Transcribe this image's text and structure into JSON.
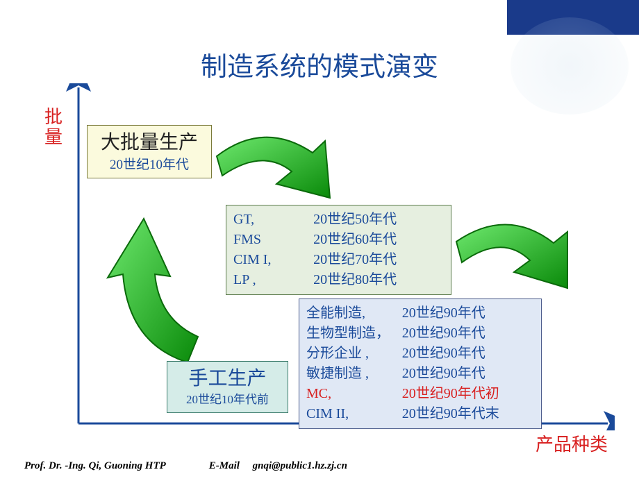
{
  "title": "制造系统的模式演变",
  "axes": {
    "y_label": "批量",
    "x_label": "产品种类",
    "axis_color": "#1a4a9a",
    "axis_width": 3
  },
  "box1": {
    "line1": "大批量生产",
    "line2": "20世纪10年代",
    "bg": "#fbfadd",
    "border": "#7a7a3a"
  },
  "box4": {
    "line1": "手工生产",
    "line2": "20世纪10年代前",
    "bg": "#d5ece8",
    "border": "#3a7a6a"
  },
  "box2": {
    "bg": "#e6efe0",
    "border": "#5a7a4a",
    "text_color": "#1a4a9a",
    "rows": [
      {
        "c1": "GT,",
        "c2": "20世纪50年代"
      },
      {
        "c1": "FMS",
        "c2": "20世纪60年代"
      },
      {
        "c1": "CIM  I,",
        "c2": "20世纪70年代"
      },
      {
        "c1": "LP ,",
        "c2": "20世纪80年代"
      }
    ]
  },
  "box3": {
    "bg": "#e0e8f5",
    "border": "#4a5a8a",
    "text_color": "#1a4a9a",
    "alt_color": "#d82020",
    "rows": [
      {
        "c1": "全能制造,",
        "c2": "20世纪90年代",
        "alt": false
      },
      {
        "c1": "生物型制造，",
        "c2": "20世纪90年代",
        "alt": false
      },
      {
        "c1": "分形企业 ,",
        "c2": "20世纪90年代",
        "alt": false
      },
      {
        "c1": "敏捷制造 ,",
        "c2": "20世纪90年代",
        "alt": false
      },
      {
        "c1": "MC,",
        "c2": "20世纪90年代初",
        "alt": true
      },
      {
        "c1": "CIM II,",
        "c2": "20世纪90年代末",
        "alt": false
      }
    ]
  },
  "arrows": {
    "fill": "#1dbb1d",
    "stroke": "#0a6a0a",
    "gradient_light": "#6de86d",
    "gradient_dark": "#0a8a0a"
  },
  "footer": {
    "left": "Prof. Dr. -Ing.   Qi, Guoning    HTP",
    "mid": "E-Mail",
    "right": "gnqi@public1.hz.zj.cn"
  },
  "decor": {
    "corner_color": "#1a3a8a"
  }
}
